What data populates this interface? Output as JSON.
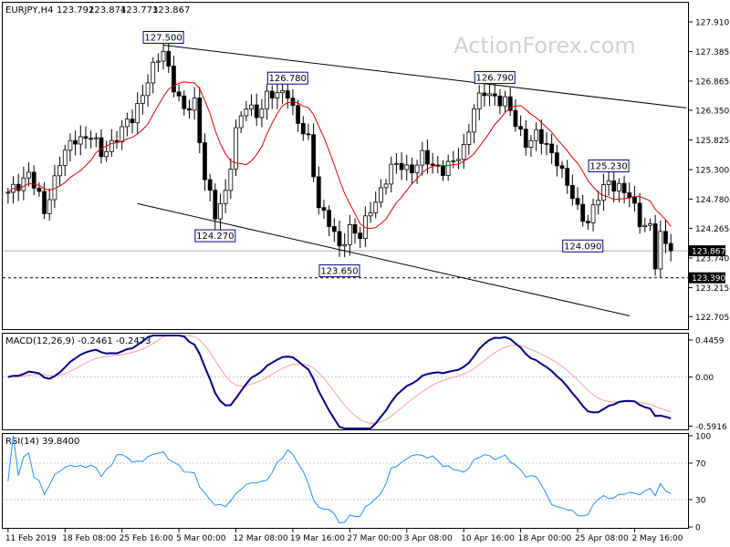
{
  "chart_data": {
    "type": "candlestick",
    "header": {
      "symbol_label": "EURJPY,H4",
      "ohlc": [
        "123.792",
        "123.874",
        "123.773",
        "123.867"
      ]
    },
    "watermark": "ActionForex.com",
    "colors": {
      "candles": "#000000",
      "moving_average": "#e00000",
      "trendlines": "#000000",
      "tag_border": "#00008b",
      "tag_text": "#000000",
      "macd_main": "#000080",
      "macd_signal": "#ff9d9d",
      "rsi_line": "#1e90ff",
      "grid": "#c8c8c8",
      "watermark": "#d0d0d0"
    },
    "price_panel": {
      "ylim": [
        122.5,
        128.2
      ],
      "y_ticks": [
        "127.910",
        "127.385",
        "126.865",
        "126.350",
        "125.825",
        "125.300",
        "124.780",
        "124.265",
        "123.740",
        "123.215",
        "122.705"
      ],
      "current_price": "123.867",
      "support_level": "123.390",
      "swing_labels": [
        {
          "text": "127.500",
          "bar": 30,
          "value": 127.5
        },
        {
          "text": "126.780",
          "bar": 54,
          "value": 126.78
        },
        {
          "text": "124.270",
          "bar": 40,
          "value": 124.27
        },
        {
          "text": "123.650",
          "bar": 64,
          "value": 123.65
        },
        {
          "text": "126.790",
          "bar": 94,
          "value": 126.79
        },
        {
          "text": "125.230",
          "bar": 116,
          "value": 125.23
        },
        {
          "text": "124.090",
          "bar": 111,
          "value": 124.09
        }
      ],
      "trendlines": [
        {
          "from": {
            "bar": 30,
            "value": 127.5
          },
          "to": {
            "bar": 131,
            "value": 126.39
          }
        },
        {
          "from": {
            "bar": 25,
            "value": 124.7
          },
          "to": {
            "bar": 120,
            "value": 122.72
          }
        }
      ]
    },
    "macd_panel": {
      "label": "MACD(12,26,9) -0.2461 -0.2473",
      "y_ticks": [
        "0.4459",
        "0.00",
        "-0.5916"
      ],
      "ylim": [
        -0.62,
        0.5
      ]
    },
    "rsi_panel": {
      "label": "RSI(14) 39.8400",
      "y_ticks": [
        "100",
        "70",
        "30",
        "0"
      ],
      "levels": [
        70,
        30
      ],
      "ylim": [
        0,
        100
      ]
    },
    "x_ticks": [
      {
        "label": "11 Feb 2019",
        "bar": 0
      },
      {
        "label": "18 Feb 08:00",
        "bar": 11
      },
      {
        "label": "25 Feb 16:00",
        "bar": 22
      },
      {
        "label": "5 Mar 00:00",
        "bar": 33
      },
      {
        "label": "12 Mar 08:00",
        "bar": 44
      },
      {
        "label": "19 Mar 16:00",
        "bar": 55
      },
      {
        "label": "27 Mar 00:00",
        "bar": 66
      },
      {
        "label": "3 Apr 08:00",
        "bar": 77
      },
      {
        "label": "10 Apr 16:00",
        "bar": 88
      },
      {
        "label": "18 Apr 00:00",
        "bar": 99
      },
      {
        "label": "25 Apr 08:00",
        "bar": 110
      },
      {
        "label": "2 May 16:00",
        "bar": 121
      }
    ],
    "close_anchors": [
      [
        0,
        124.85
      ],
      [
        4,
        125.25
      ],
      [
        7,
        124.55
      ],
      [
        10,
        125.45
      ],
      [
        13,
        125.85
      ],
      [
        16,
        125.9
      ],
      [
        18,
        125.55
      ],
      [
        21,
        125.9
      ],
      [
        24,
        126.2
      ],
      [
        27,
        126.9
      ],
      [
        30,
        127.4
      ],
      [
        32,
        126.8
      ],
      [
        34,
        126.3
      ],
      [
        36,
        126.5
      ],
      [
        38,
        125.2
      ],
      [
        40,
        124.45
      ],
      [
        42,
        124.9
      ],
      [
        44,
        126.0
      ],
      [
        46,
        126.4
      ],
      [
        48,
        126.3
      ],
      [
        50,
        126.6
      ],
      [
        52,
        126.6
      ],
      [
        54,
        126.7
      ],
      [
        56,
        126.1
      ],
      [
        58,
        125.8
      ],
      [
        60,
        124.7
      ],
      [
        62,
        124.35
      ],
      [
        64,
        123.9
      ],
      [
        66,
        124.3
      ],
      [
        68,
        124.1
      ],
      [
        70,
        124.6
      ],
      [
        72,
        124.95
      ],
      [
        74,
        125.3
      ],
      [
        76,
        125.4
      ],
      [
        78,
        125.3
      ],
      [
        80,
        125.5
      ],
      [
        82,
        125.4
      ],
      [
        84,
        125.3
      ],
      [
        86,
        125.4
      ],
      [
        88,
        125.7
      ],
      [
        90,
        126.4
      ],
      [
        92,
        126.65
      ],
      [
        94,
        126.6
      ],
      [
        96,
        126.5
      ],
      [
        98,
        126.1
      ],
      [
        100,
        125.8
      ],
      [
        102,
        125.9
      ],
      [
        104,
        125.7
      ],
      [
        106,
        125.5
      ],
      [
        108,
        125.0
      ],
      [
        110,
        124.6
      ],
      [
        112,
        124.4
      ],
      [
        114,
        124.8
      ],
      [
        116,
        125.1
      ],
      [
        118,
        125.0
      ],
      [
        120,
        124.8
      ],
      [
        122,
        124.4
      ],
      [
        124,
        124.3
      ],
      [
        125,
        123.6
      ],
      [
        126,
        124.1
      ],
      [
        128,
        123.87
      ]
    ]
  }
}
